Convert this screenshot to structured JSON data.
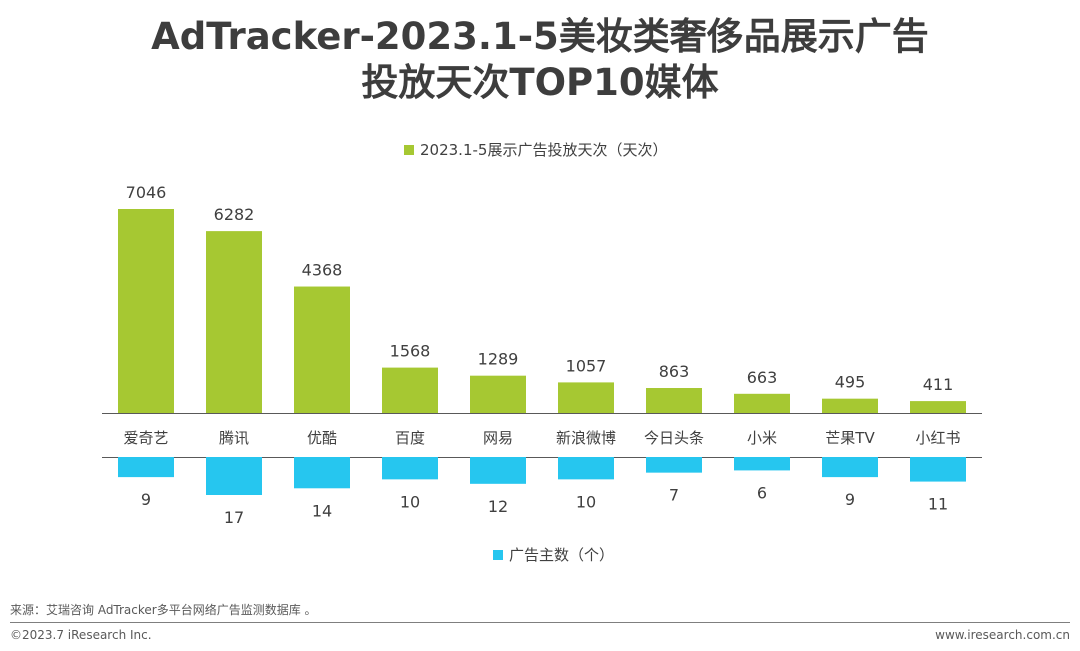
{
  "title": {
    "line1": "AdTracker-2023.1-5美妆类奢侈品展示广告",
    "line2": "投放天次TOP10媒体"
  },
  "colors": {
    "top_series": "#a6c832",
    "bottom_series": "#26c6ef",
    "axis": "#595959"
  },
  "chart_data": [
    {
      "type": "bar",
      "legend_position": "top",
      "categories": [
        "爱奇艺",
        "腾讯",
        "优酷",
        "百度",
        "网易",
        "新浪微博",
        "今日头条",
        "小米",
        "芒果TV",
        "小红书"
      ],
      "series": [
        {
          "name": "2023.1-5展示广告投放天次（天次）",
          "values": [
            7046,
            6282,
            4368,
            1568,
            1289,
            1057,
            863,
            663,
            495,
            411
          ]
        }
      ]
    },
    {
      "type": "bar",
      "orientation": "downward",
      "legend_position": "bottom",
      "categories": [
        "爱奇艺",
        "腾讯",
        "优酷",
        "百度",
        "网易",
        "新浪微博",
        "今日头条",
        "小米",
        "芒果TV",
        "小红书"
      ],
      "series": [
        {
          "name": "广告主数（个）",
          "values": [
            9,
            17,
            14,
            10,
            12,
            10,
            7,
            6,
            9,
            11
          ]
        }
      ]
    }
  ],
  "footer": {
    "source": "来源：艾瑞咨询 AdTracker多平台网络广告监测数据库 。",
    "copyright": "©2023.7 iResearch Inc.",
    "website": "www.iresearch.com.cn"
  }
}
